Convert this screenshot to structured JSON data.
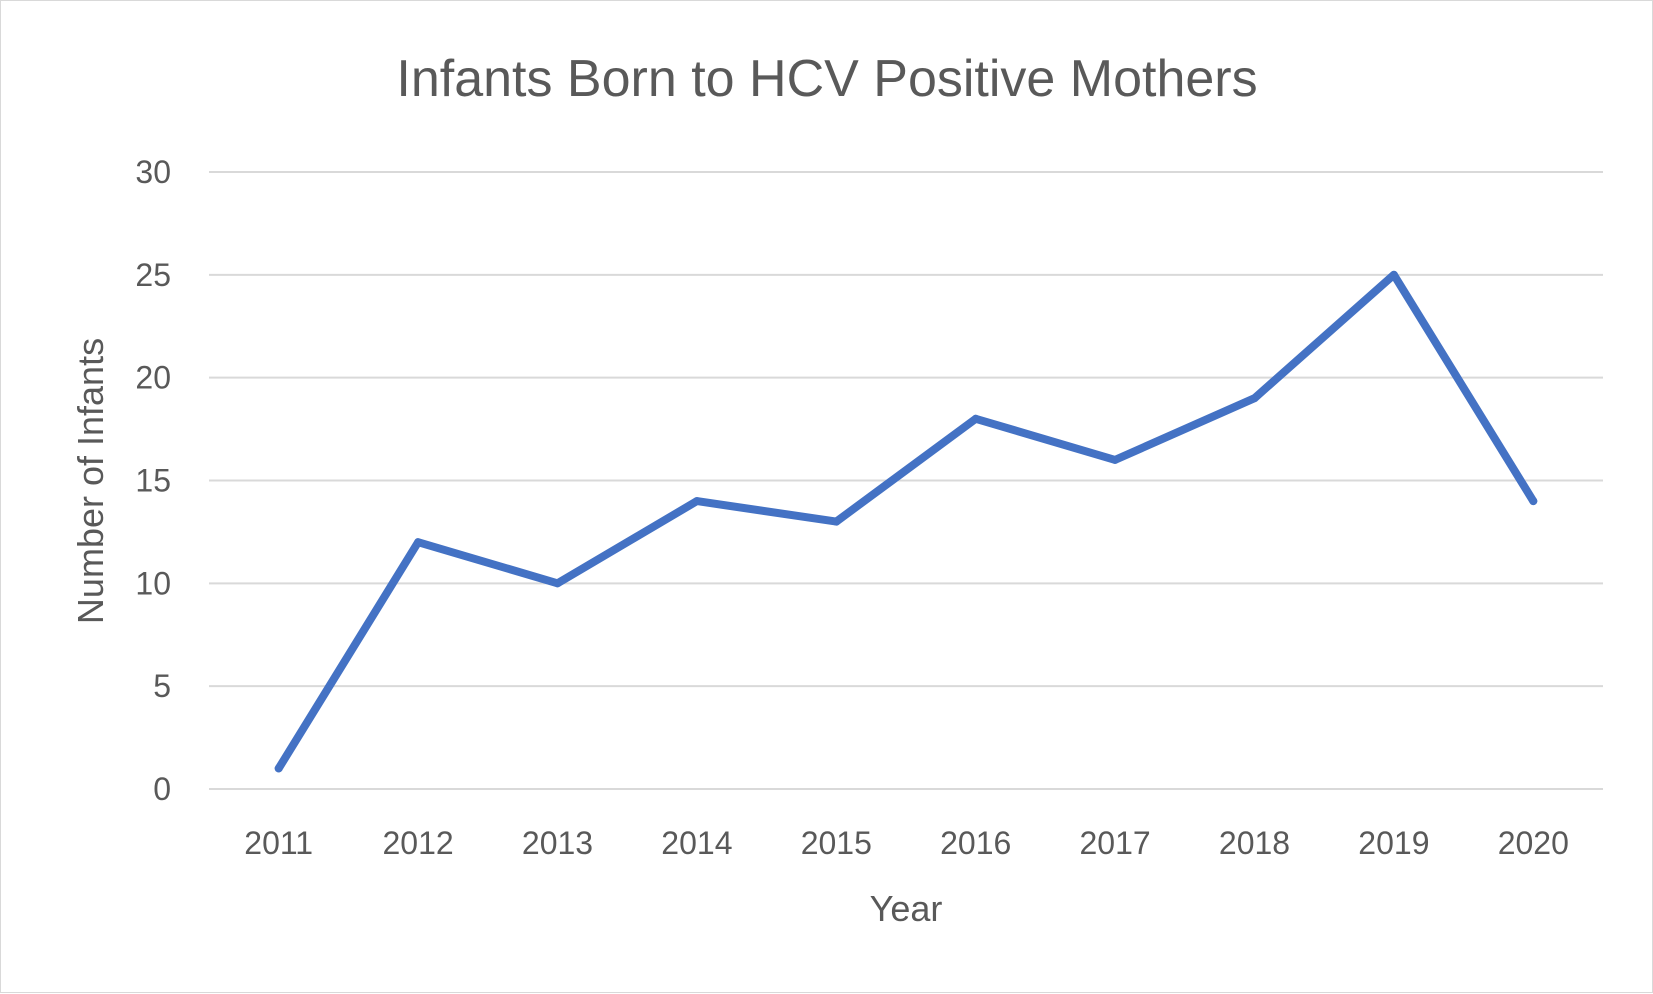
{
  "chart_data": {
    "type": "line",
    "title": "Infants Born to HCV Positive Mothers",
    "xlabel": "Year",
    "ylabel": "Number of Infants",
    "categories": [
      "2011",
      "2012",
      "2013",
      "2014",
      "2015",
      "2016",
      "2017",
      "2018",
      "2019",
      "2020"
    ],
    "series": [
      {
        "values": [
          1,
          12,
          10,
          14,
          13,
          18,
          16,
          19,
          25,
          14
        ]
      }
    ],
    "ylim": [
      0,
      30
    ],
    "yticks": [
      "0",
      "5",
      "10",
      "15",
      "20",
      "25",
      "30"
    ],
    "grid": true,
    "legend": "none",
    "line_color": "#4472c4"
  }
}
